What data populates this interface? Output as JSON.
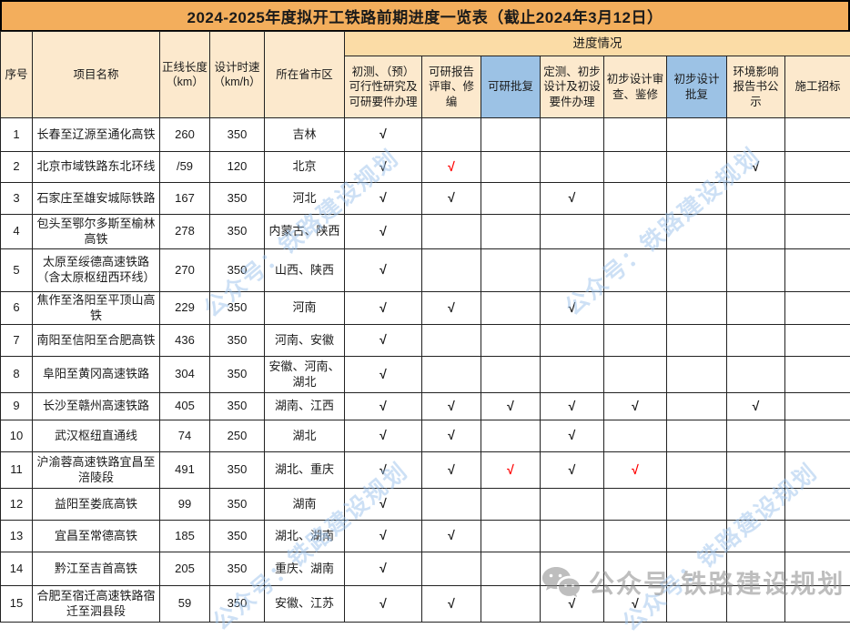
{
  "title": "2024-2025年度拟开工铁路前期进度一览表（截止2024年3月12日）",
  "header": {
    "group_label": "进度情况",
    "left_columns": [
      {
        "label": "序号"
      },
      {
        "label": "项目名称"
      },
      {
        "label": "正线长度",
        "sub": "（km）"
      },
      {
        "label": "设计时速",
        "sub": "（km/h）"
      },
      {
        "label": "所在省市区"
      }
    ],
    "progress_columns": [
      {
        "label": "初测、（预）可行性研究及可研要件办理",
        "blue": false
      },
      {
        "label": "可研报告评审、修编",
        "blue": false
      },
      {
        "label": "可研批复",
        "blue": true
      },
      {
        "label": "定测、初步设计及初设要件办理",
        "blue": false
      },
      {
        "label": "初步设计审查、鉴修",
        "blue": false
      },
      {
        "label": "初步设计批复",
        "blue": true
      },
      {
        "label": "环境影响报告书公示",
        "blue": false
      },
      {
        "label": "施工招标",
        "blue": false
      }
    ]
  },
  "rows": [
    {
      "num": "1",
      "name": "长春至辽源至通化高铁",
      "length": "260",
      "speed": "350",
      "province": "吉林",
      "progress": [
        "√",
        "",
        "",
        "",
        "",
        "",
        "",
        ""
      ],
      "red": []
    },
    {
      "num": "2",
      "name": "北京市域铁路东北环线",
      "length": "/59",
      "speed": "120",
      "province": "北京",
      "progress": [
        "√",
        "√",
        "",
        "",
        "",
        "",
        "√",
        ""
      ],
      "red": [
        1
      ]
    },
    {
      "num": "3",
      "name": "石家庄至雄安城际铁路",
      "length": "167",
      "speed": "350",
      "province": "河北",
      "progress": [
        "√",
        "√",
        "",
        "√",
        "",
        "",
        "",
        ""
      ],
      "red": []
    },
    {
      "num": "4",
      "name": "包头至鄂尔多斯至榆林高铁",
      "length": "278",
      "speed": "350",
      "province": "内蒙古、陕西",
      "progress": [
        "√",
        "",
        "",
        "",
        "",
        "",
        "",
        ""
      ],
      "red": []
    },
    {
      "num": "5",
      "name": "太原至绥德高速铁路（含太原枢纽西环线）",
      "length": "270",
      "speed": "350",
      "province": "山西、陕西",
      "progress": [
        "√",
        "",
        "",
        "",
        "",
        "",
        "",
        ""
      ],
      "red": []
    },
    {
      "num": "6",
      "name": "焦作至洛阳至平顶山高铁",
      "length": "229",
      "speed": "350",
      "province": "河南",
      "progress": [
        "√",
        "√",
        "",
        "√",
        "",
        "",
        "",
        ""
      ],
      "red": []
    },
    {
      "num": "7",
      "name": "南阳至信阳至合肥高铁",
      "length": "436",
      "speed": "350",
      "province": "河南、安徽",
      "progress": [
        "√",
        "",
        "",
        "",
        "",
        "",
        "",
        ""
      ],
      "red": []
    },
    {
      "num": "8",
      "name": "阜阳至黄冈高速铁路",
      "length": "304",
      "speed": "350",
      "province": "安徽、河南、湖北",
      "progress": [
        "√",
        "",
        "",
        "",
        "",
        "",
        "",
        ""
      ],
      "red": []
    },
    {
      "num": "9",
      "name": "长沙至赣州高速铁路",
      "length": "405",
      "speed": "350",
      "province": "湖南、江西",
      "progress": [
        "√",
        "√",
        "√",
        "√",
        "√",
        "",
        "√",
        ""
      ],
      "red": []
    },
    {
      "num": "10",
      "name": "武汉枢纽直通线",
      "length": "74",
      "speed": "250",
      "province": "湖北",
      "progress": [
        "√",
        "√",
        "",
        "√",
        "",
        "",
        "",
        ""
      ],
      "red": []
    },
    {
      "num": "11",
      "name": "沪渝蓉高速铁路宜昌至涪陵段",
      "length": "491",
      "speed": "350",
      "province": "湖北、重庆",
      "progress": [
        "√",
        "√",
        "√",
        "√",
        "√",
        "",
        "",
        ""
      ],
      "red": [
        2,
        4
      ]
    },
    {
      "num": "12",
      "name": "益阳至娄底高铁",
      "length": "99",
      "speed": "350",
      "province": "湖南",
      "progress": [
        "√",
        "",
        "",
        "",
        "",
        "",
        "",
        ""
      ],
      "red": []
    },
    {
      "num": "13",
      "name": "宜昌至常德高铁",
      "length": "185",
      "speed": "350",
      "province": "湖北、湖南",
      "progress": [
        "√",
        "√",
        "",
        "",
        "",
        "",
        "",
        ""
      ],
      "red": []
    },
    {
      "num": "14",
      "name": "黔江至吉首高铁",
      "length": "205",
      "speed": "350",
      "province": "重庆、湖南",
      "progress": [
        "√",
        "",
        "",
        "",
        "",
        "",
        "",
        ""
      ],
      "red": []
    },
    {
      "num": "15",
      "name": "合肥至宿迁高速铁路宿迁至泗县段",
      "length": "59",
      "speed": "350",
      "province": "安徽、江苏",
      "progress": [
        "√",
        "√",
        "",
        "√",
        "√",
        "",
        "",
        ""
      ],
      "red": []
    }
  ],
  "watermarks": {
    "diagonal_text": "公众号：铁路建设规划",
    "footer_text": "公众号·铁路建设规划"
  },
  "colors": {
    "title_bg": "#F3AE5C",
    "band_bg": "#FBDCA6",
    "header_bg": "#FCE9CD",
    "blue_header_bg": "#9CC2E5",
    "check_red": "#FF0000",
    "watermark_blue": "#9CC3EC",
    "watermark_gray": "#8A8A8A"
  }
}
